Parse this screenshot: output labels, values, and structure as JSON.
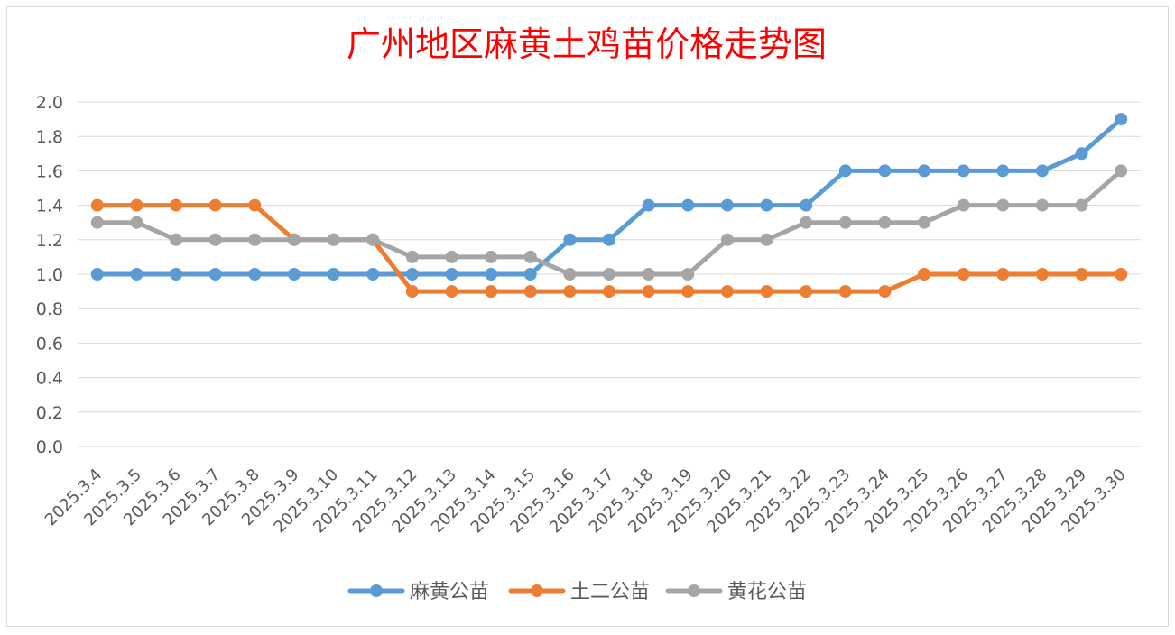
{
  "chart_data": {
    "type": "line",
    "title": "广州地区麻黄土鸡苗价格走势图",
    "xlabel": "",
    "ylabel": "",
    "ylim": [
      0,
      2.0
    ],
    "ytick_step": 0.2,
    "grid": true,
    "legend_position": "bottom",
    "categories": [
      "2025.3.4",
      "2025.3.5",
      "2025.3.6",
      "2025.3.7",
      "2025.3.8",
      "2025.3.9",
      "2025.3.10",
      "2025.3.11",
      "2025.3.12",
      "2025.3.13",
      "2025.3.14",
      "2025.3.15",
      "2025.3.16",
      "2025.3.17",
      "2025.3.18",
      "2025.3.19",
      "2025.3.20",
      "2025.3.21",
      "2025.3.22",
      "2025.3.23",
      "2025.3.24",
      "2025.3.25",
      "2025.3.26",
      "2025.3.27",
      "2025.3.28",
      "2025.3.29",
      "2025.3.30"
    ],
    "series": [
      {
        "name": "麻黄公苗",
        "color": "#5b9bd5",
        "values": [
          1.0,
          1.0,
          1.0,
          1.0,
          1.0,
          1.0,
          1.0,
          1.0,
          1.0,
          1.0,
          1.0,
          1.0,
          1.2,
          1.2,
          1.4,
          1.4,
          1.4,
          1.4,
          1.4,
          1.6,
          1.6,
          1.6,
          1.6,
          1.6,
          1.6,
          1.7,
          1.9
        ]
      },
      {
        "name": "土二公苗",
        "color": "#ed7d31",
        "values": [
          1.4,
          1.4,
          1.4,
          1.4,
          1.4,
          1.2,
          1.2,
          1.2,
          0.9,
          0.9,
          0.9,
          0.9,
          0.9,
          0.9,
          0.9,
          0.9,
          0.9,
          0.9,
          0.9,
          0.9,
          0.9,
          1.0,
          1.0,
          1.0,
          1.0,
          1.0,
          1.0
        ]
      },
      {
        "name": "黄花公苗",
        "color": "#a5a5a5",
        "values": [
          1.3,
          1.3,
          1.2,
          1.2,
          1.2,
          1.2,
          1.2,
          1.2,
          1.1,
          1.1,
          1.1,
          1.1,
          1.0,
          1.0,
          1.0,
          1.0,
          1.2,
          1.2,
          1.3,
          1.3,
          1.3,
          1.3,
          1.4,
          1.4,
          1.4,
          1.4,
          1.6
        ]
      }
    ],
    "title_color": "#ff0000"
  }
}
